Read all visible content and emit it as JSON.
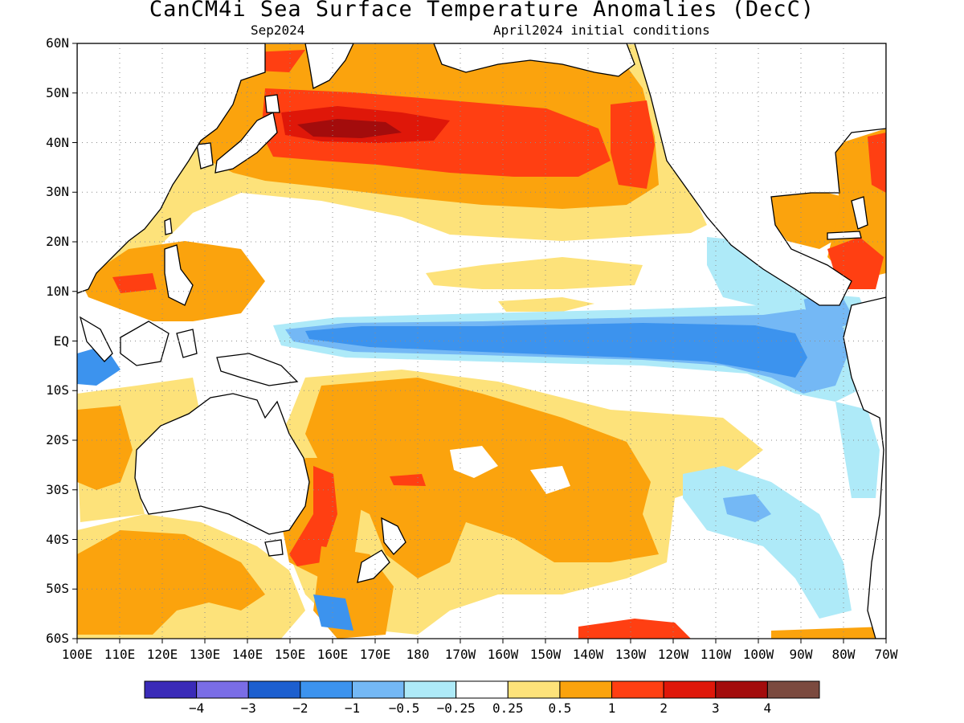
{
  "title": "CanCM4i Sea Surface Temperature Anomalies (DecC)",
  "subtitle_left": "Sep2024",
  "subtitle_right": "April2024 initial conditions",
  "lat_labels": [
    "60N",
    "50N",
    "40N",
    "30N",
    "20N",
    "10N",
    "EQ",
    "10S",
    "20S",
    "30S",
    "40S",
    "50S",
    "60S"
  ],
  "lon_labels": [
    "100E",
    "110E",
    "120E",
    "130E",
    "140E",
    "150E",
    "160E",
    "170E",
    "180",
    "170W",
    "160W",
    "150W",
    "140W",
    "130W",
    "120W",
    "110W",
    "100W",
    "90W",
    "80W",
    "70W"
  ],
  "colorbar": {
    "colors": [
      "#3a2bb8",
      "#7a6de6",
      "#1c5fcf",
      "#3c93ee",
      "#74b8f5",
      "#aeeaf8",
      "#ffffff",
      "#fde27a",
      "#fba30d",
      "#ff3f12",
      "#df1709",
      "#a30c0c",
      "#7b4a3f"
    ],
    "labels": [
      "−4",
      "−3",
      "−2",
      "−1",
      "−0.5",
      "−0.25",
      "0.25",
      "0.5",
      "1",
      "2",
      "3",
      "4"
    ]
  },
  "legend_bins": [
    "<-4",
    "-4 to -3",
    "-3 to -2",
    "-2 to -1",
    "-1 to -0.5",
    "-0.5 to -0.25",
    "-0.25 to 0.25",
    "0.25 to 0.5",
    "0.5 to 1",
    "1 to 2",
    "2 to 3",
    "3 to 4",
    ">4"
  ]
}
